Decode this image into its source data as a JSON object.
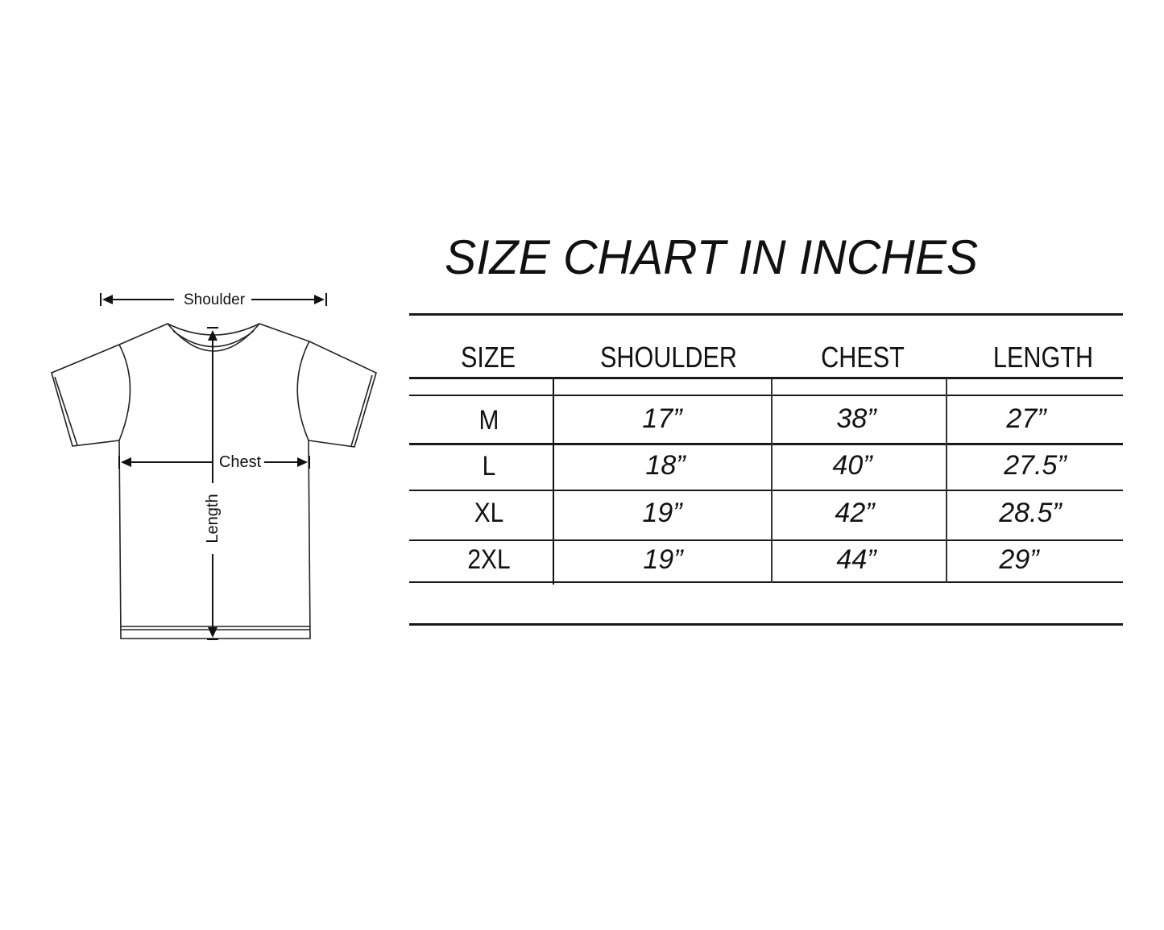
{
  "title": "SIZE CHART IN INCHES",
  "diagram": {
    "labels": {
      "shoulder": "Shoulder",
      "chest": "Chest",
      "length": "Length"
    }
  },
  "table": {
    "headers": [
      "SIZE",
      "SHOULDER",
      "CHEST",
      "LENGTH"
    ],
    "rows": [
      {
        "size": "M",
        "shoulder": "17”",
        "chest": "38”",
        "length": "27”"
      },
      {
        "size": "L",
        "shoulder": "18”",
        "chest": "40”",
        "length": "27.5”"
      },
      {
        "size": "XL",
        "shoulder": "19”",
        "chest": "42”",
        "length": "28.5”"
      },
      {
        "size": "2XL",
        "shoulder": "19”",
        "chest": "44”",
        "length": "29”"
      }
    ]
  },
  "colors": {
    "ink": "#111111",
    "background": "#ffffff"
  }
}
